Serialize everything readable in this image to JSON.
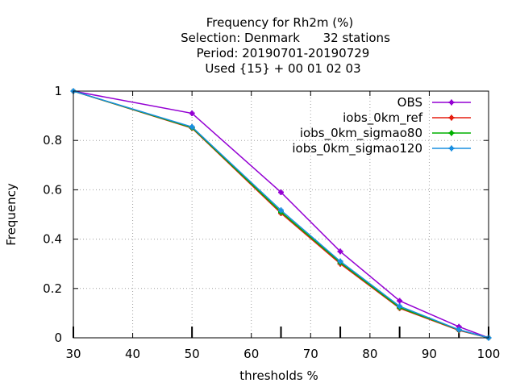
{
  "chart_data": {
    "type": "line",
    "title_lines": [
      "Frequency  for Rh2m (%)",
      "Selection: Denmark      32 stations",
      "Period: 20190701-20190729",
      "Used {15} + 00 01 02 03"
    ],
    "xlabel": "thresholds %",
    "ylabel": "Frequency",
    "xlim": [
      30,
      100
    ],
    "ylim": [
      0,
      1
    ],
    "x_ticks": [
      30,
      40,
      50,
      60,
      70,
      80,
      90,
      100
    ],
    "y_ticks": [
      0,
      0.2,
      0.4,
      0.6,
      0.8,
      1
    ],
    "y_tick_labels": [
      "0",
      "0.2",
      "0.4",
      "0.6",
      "0.8",
      "1"
    ],
    "grid": true,
    "legend_position": "top-right",
    "x": [
      30,
      50,
      65,
      75,
      85,
      95,
      100
    ],
    "series": [
      {
        "name": "OBS",
        "color": "#9400d3",
        "values": [
          1.0,
          0.91,
          0.59,
          0.35,
          0.15,
          0.045,
          0.0
        ]
      },
      {
        "name": "iobs_0km_ref",
        "color": "#e51e10",
        "values": [
          1.0,
          0.85,
          0.505,
          0.3,
          0.12,
          0.03,
          0.0
        ]
      },
      {
        "name": "iobs_0km_sigmao80",
        "color": "#00b000",
        "values": [
          1.0,
          0.852,
          0.51,
          0.305,
          0.123,
          0.032,
          0.0
        ]
      },
      {
        "name": "iobs_0km_sigmao120",
        "color": "#1a8fe0",
        "values": [
          1.0,
          0.855,
          0.517,
          0.31,
          0.128,
          0.033,
          0.0
        ]
      }
    ]
  }
}
